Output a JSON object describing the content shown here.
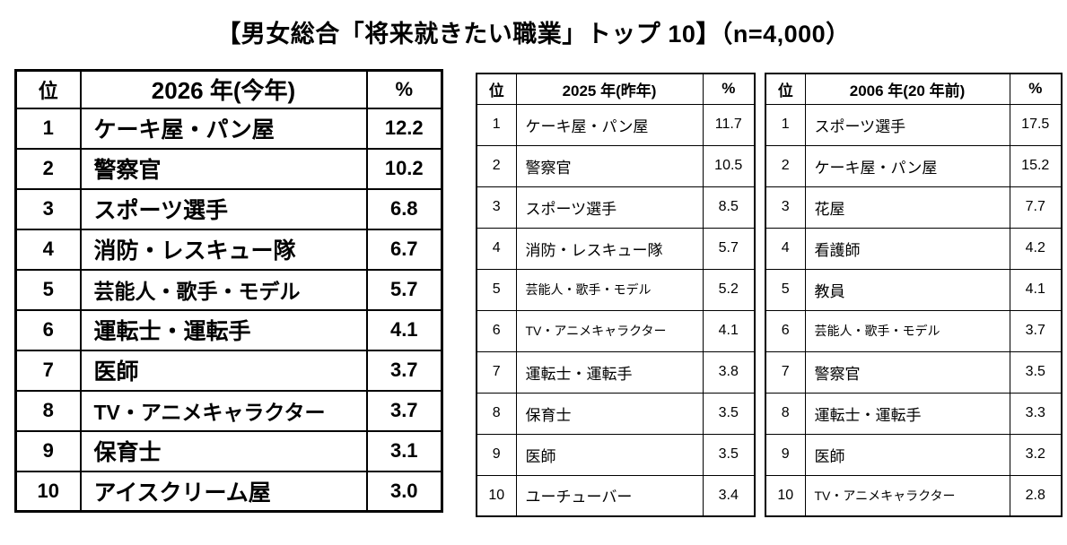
{
  "title": "【男女総合「将来就きたい職業」トップ 10】（n=4,000）",
  "chart_data": [
    {
      "type": "table",
      "title": "2026 年(今年)",
      "columns": [
        "位",
        "2026 年(今年)",
        "%"
      ],
      "rows": [
        [
          "1",
          "ケーキ屋・パン屋",
          "12.2"
        ],
        [
          "2",
          "警察官",
          "10.2"
        ],
        [
          "3",
          "スポーツ選手",
          "6.8"
        ],
        [
          "4",
          "消防・レスキュー隊",
          "6.7"
        ],
        [
          "5",
          "芸能人・歌手・モデル",
          "5.7"
        ],
        [
          "6",
          "運転士・運転手",
          "4.1"
        ],
        [
          "7",
          "医師",
          "3.7"
        ],
        [
          "8",
          "TV・アニメキャラクター",
          "3.7"
        ],
        [
          "9",
          "保育士",
          "3.1"
        ],
        [
          "10",
          "アイスクリーム屋",
          "3.0"
        ]
      ]
    },
    {
      "type": "table",
      "title": "2025 年(昨年)",
      "columns": [
        "位",
        "2025 年(昨年)",
        "%"
      ],
      "rows": [
        [
          "1",
          "ケーキ屋・パン屋",
          "11.7"
        ],
        [
          "2",
          "警察官",
          "10.5"
        ],
        [
          "3",
          "スポーツ選手",
          "8.5"
        ],
        [
          "4",
          "消防・レスキュー隊",
          "5.7"
        ],
        [
          "5",
          "芸能人・歌手・モデル",
          "5.2"
        ],
        [
          "6",
          "TV・アニメキャラクター",
          "4.1"
        ],
        [
          "7",
          "運転士・運転手",
          "3.8"
        ],
        [
          "8",
          "保育士",
          "3.5"
        ],
        [
          "9",
          "医師",
          "3.5"
        ],
        [
          "10",
          "ユーチューバー",
          "3.4"
        ]
      ]
    },
    {
      "type": "table",
      "title": "2006 年(20 年前)",
      "columns": [
        "位",
        "2006 年(20 年前)",
        "%"
      ],
      "rows": [
        [
          "1",
          "スポーツ選手",
          "17.5"
        ],
        [
          "2",
          "ケーキ屋・パン屋",
          "15.2"
        ],
        [
          "3",
          "花屋",
          "7.7"
        ],
        [
          "4",
          "看護師",
          "4.2"
        ],
        [
          "5",
          "教員",
          "4.1"
        ],
        [
          "6",
          "芸能人・歌手・モデル",
          "3.7"
        ],
        [
          "7",
          "警察官",
          "3.5"
        ],
        [
          "8",
          "運転士・運転手",
          "3.3"
        ],
        [
          "9",
          "医師",
          "3.2"
        ],
        [
          "10",
          "TV・アニメキャラクター",
          "2.8"
        ]
      ]
    }
  ]
}
